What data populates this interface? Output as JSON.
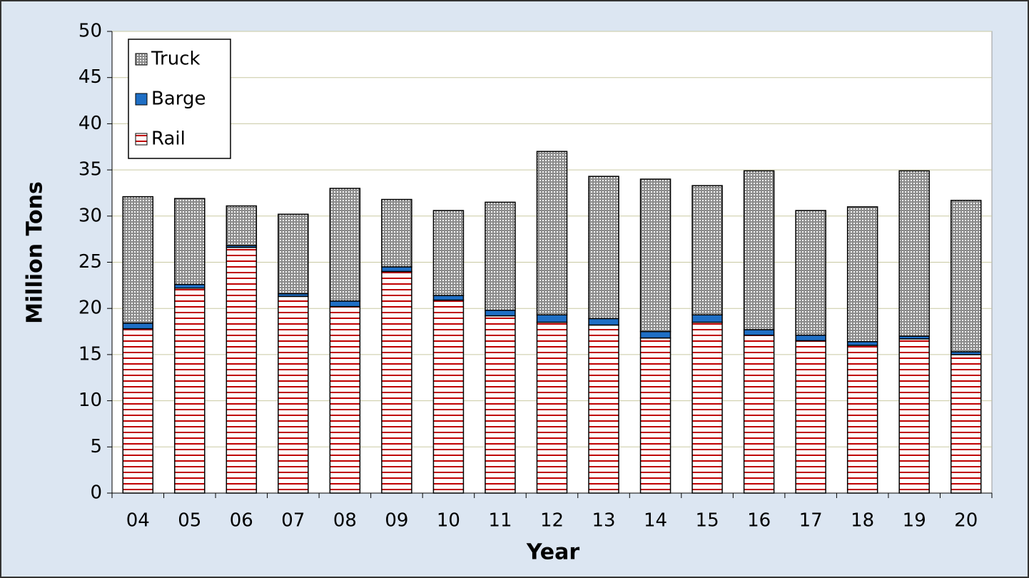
{
  "chart_data": {
    "type": "stacked-bar",
    "x_label": "Year",
    "y_label": "Million Tons",
    "categories": [
      "04",
      "05",
      "06",
      "07",
      "08",
      "09",
      "10",
      "11",
      "12",
      "13",
      "14",
      "15",
      "16",
      "17",
      "18",
      "19",
      "20"
    ],
    "series": [
      {
        "name": "Rail",
        "color": "#c00000",
        "values": [
          17.8,
          22.2,
          26.6,
          21.3,
          20.2,
          24.0,
          20.9,
          19.2,
          18.5,
          18.2,
          16.8,
          18.5,
          17.1,
          16.5,
          16.0,
          16.7,
          15.0
        ]
      },
      {
        "name": "Barge",
        "color": "#1f6fc5",
        "values": [
          0.6,
          0.4,
          0.2,
          0.3,
          0.6,
          0.5,
          0.5,
          0.6,
          0.8,
          0.7,
          0.7,
          0.8,
          0.6,
          0.6,
          0.4,
          0.3,
          0.3
        ]
      },
      {
        "name": "Truck",
        "color": "#8c8c8c",
        "values": [
          13.7,
          9.3,
          4.3,
          8.6,
          12.2,
          7.3,
          9.2,
          11.7,
          17.7,
          15.4,
          16.5,
          14.0,
          17.2,
          13.5,
          14.6,
          17.9,
          16.4
        ]
      }
    ],
    "ylim": [
      0,
      50
    ],
    "yticks": [
      0,
      5,
      10,
      15,
      20,
      25,
      30,
      35,
      40,
      45,
      50
    ],
    "grid": true,
    "legend": "top-left"
  }
}
